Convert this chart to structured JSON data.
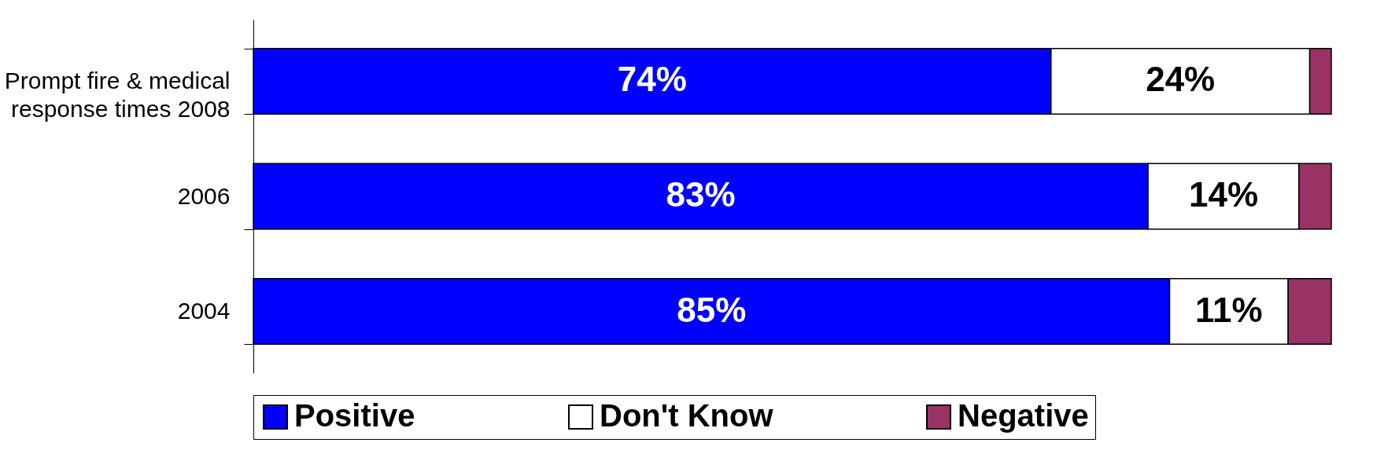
{
  "chart_data": {
    "type": "bar",
    "orientation": "horizontal",
    "stacked": true,
    "legend": "bottom",
    "tick_labels": "y",
    "grid": false,
    "categories": [
      "Prompt fire & medical\nresponse times 2008",
      "2006",
      "2004"
    ],
    "series": [
      {
        "name": "Positive",
        "color": "#0000ff",
        "values": [
          74,
          83,
          85
        ],
        "value_labels": [
          "74%",
          "83%",
          "85%"
        ]
      },
      {
        "name": "Don't Know",
        "color": "#ffffff",
        "values": [
          24,
          14,
          11
        ],
        "value_labels": [
          "24%",
          "14%",
          "11%"
        ]
      },
      {
        "name": "Negative",
        "color": "#993366",
        "values": [
          2,
          3,
          4
        ],
        "value_labels": [
          null,
          null,
          null
        ]
      }
    ]
  }
}
